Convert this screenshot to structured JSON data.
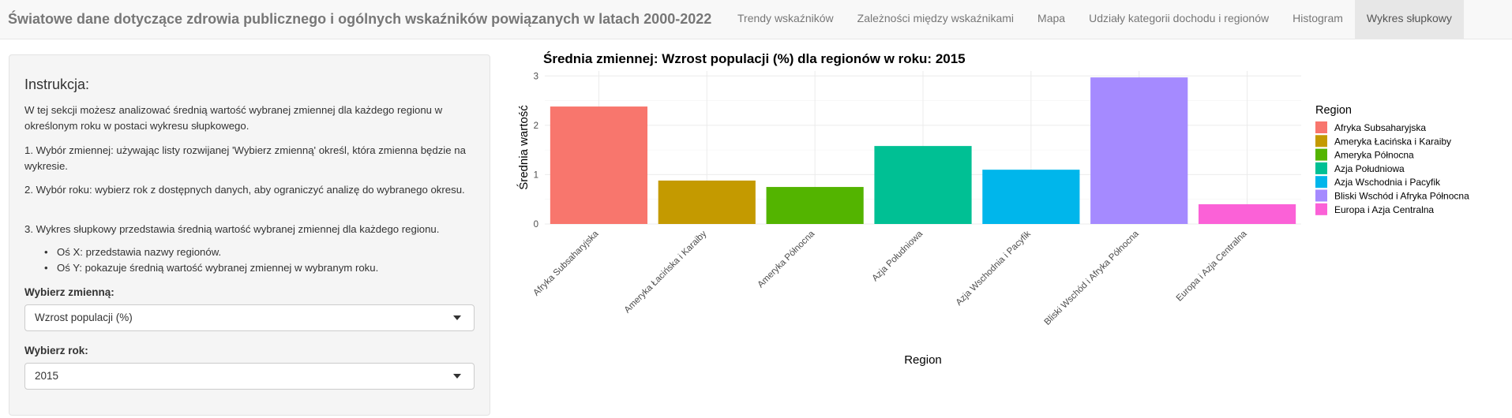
{
  "navbar": {
    "title": "Światowe dane dotyczące zdrowia publicznego i ogólnych wskaźników powiązanych w latach 2000-2022",
    "tabs": [
      {
        "label": "Trendy wskaźników"
      },
      {
        "label": "Zależności między wskaźnikami"
      },
      {
        "label": "Mapa"
      },
      {
        "label": "Udziały kategorii dochodu i regionów"
      },
      {
        "label": "Histogram"
      },
      {
        "label": "Wykres słupkowy"
      }
    ],
    "active_tab": "Wykres słupkowy"
  },
  "sidebar": {
    "title": "Instrukcja:",
    "intro": "W tej sekcji możesz analizować średnią wartość wybranej zmiennej dla każdego regionu w określonym roku w postaci wykresu słupkowego.",
    "step1": "1. Wybór zmiennej: używając listy rozwijanej 'Wybierz zmienną' określ, która zmienna będzie na wykresie.",
    "step2": "2. Wybór roku: wybierz rok z dostępnych danych, aby ograniczyć analizę do wybranego okresu.",
    "step3": "3. Wykres słupkowy przedstawia średnią wartość wybranej zmiennej dla każdego regionu.",
    "bullets": [
      "Oś X: przedstawia nazwy regionów.",
      "Oś Y: pokazuje średnią wartość wybranej zmiennej w wybranym roku."
    ],
    "variable_label": "Wybierz zmienną:",
    "variable_value": "Wzrost populacji (%)",
    "year_label": "Wybierz rok:",
    "year_value": "2015"
  },
  "chart_data": {
    "type": "bar",
    "title": "Średnia zmiennej: Wzrost populacji (%) dla regionów w roku: 2015",
    "xlabel": "Region",
    "ylabel": "Średnia wartość",
    "ylim": [
      0,
      3.1
    ],
    "yticks": [
      0,
      1,
      2,
      3
    ],
    "categories": [
      "Afryka Subsaharyjska",
      "Ameryka Łacińska i Karaiby",
      "Ameryka Północna",
      "Azja Południowa",
      "Azja Wschodnia i Pacyfik",
      "Bliski Wschód i Afryka Północna",
      "Europa i Azja Centralna"
    ],
    "values": [
      2.38,
      0.88,
      0.75,
      1.58,
      1.1,
      2.97,
      0.4
    ],
    "colors": [
      "#F8766D",
      "#C49A00",
      "#53B400",
      "#00C094",
      "#00B6EB",
      "#A58AFF",
      "#FB61D7"
    ],
    "legend_title": "Region",
    "legend_position": "right",
    "grid": true
  }
}
